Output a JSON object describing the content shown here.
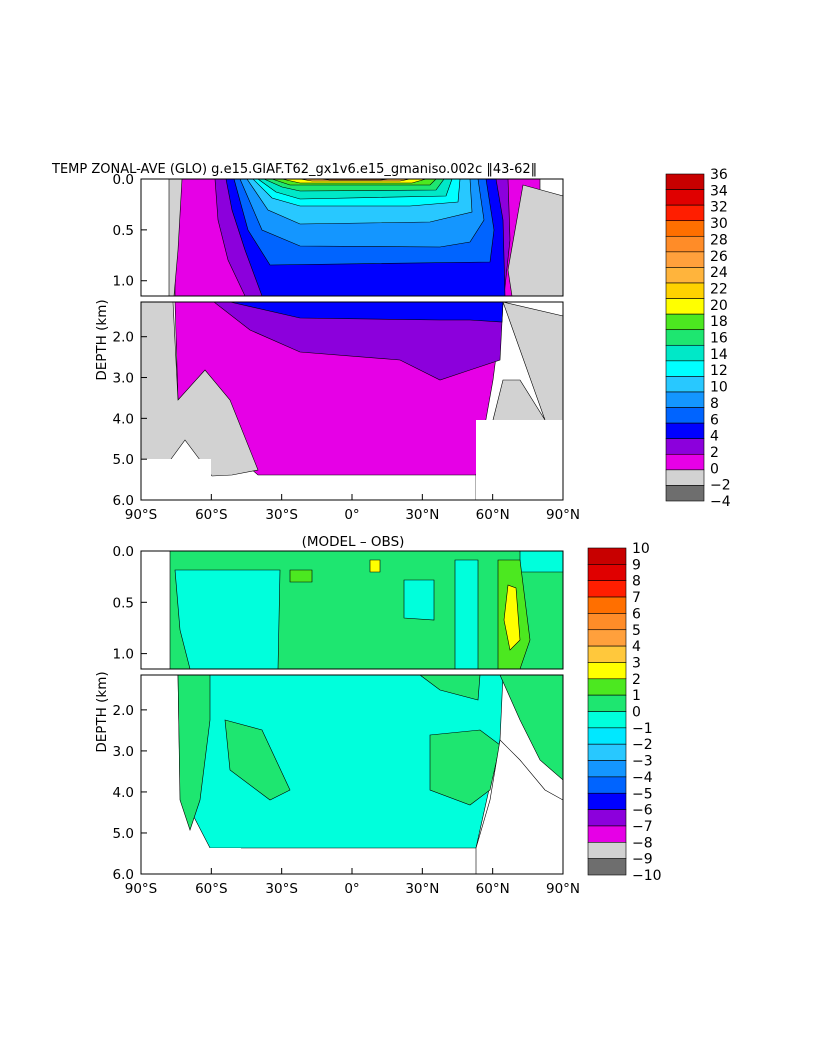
{
  "chart_data": [
    {
      "type": "heatmap",
      "title": "TEMP ZONAL-AVE (GLO) g.e15.GIAF.T62_gx1v6.e15_gmaniso.002c ‖43-62‖",
      "ylabel": "DEPTH (km)",
      "x_tick_labels": [
        "90°S",
        "60°S",
        "30°S",
        "0°",
        "30°N",
        "60°N",
        "90°N"
      ],
      "x_ticks": [
        -90,
        -60,
        -30,
        0,
        30,
        60,
        90
      ],
      "upper_y_ticks": [
        0.0,
        0.5,
        1.0
      ],
      "upper_y_tick_labels": [
        "0.0",
        "0.5",
        "1.0"
      ],
      "lower_y_ticks": [
        2.0,
        3.0,
        4.0,
        5.0,
        6.0
      ],
      "lower_y_tick_labels": [
        "2.0",
        "3.0",
        "4.0",
        "5.0",
        "6.0"
      ],
      "upper_ylim": [
        0.0,
        1.15
      ],
      "lower_ylim": [
        1.15,
        6.0
      ],
      "colorbar_levels": [
        "36",
        "34",
        "32",
        "30",
        "28",
        "26",
        "24",
        "22",
        "20",
        "18",
        "16",
        "14",
        "12",
        "10",
        "8",
        "6",
        "4",
        "2",
        "0",
        "−2",
        "−4"
      ],
      "colorbar_colors": [
        "#c80000",
        "#e00000",
        "#ff1e00",
        "#ff6f00",
        "#ff8c28",
        "#ffa03c",
        "#ffb43c",
        "#ffd200",
        "#ffff00",
        "#4ce820",
        "#1ee670",
        "#00e8c8",
        "#00ffff",
        "#28c8ff",
        "#1496ff",
        "#0064ff",
        "#0000ff",
        "#8c00dc",
        "#e600e6",
        "#d2d2d2",
        "#6e6e6e"
      ]
    },
    {
      "type": "heatmap",
      "title": "(MODEL – OBS)",
      "ylabel": "DEPTH (km)",
      "x_tick_labels": [
        "90°S",
        "60°S",
        "30°S",
        "0°",
        "30°N",
        "60°N",
        "90°N"
      ],
      "x_ticks": [
        -90,
        -60,
        -30,
        0,
        30,
        60,
        90
      ],
      "upper_y_ticks": [
        0.0,
        0.5,
        1.0
      ],
      "upper_y_tick_labels": [
        "0.0",
        "0.5",
        "1.0"
      ],
      "lower_y_ticks": [
        2.0,
        3.0,
        4.0,
        5.0,
        6.0
      ],
      "lower_y_tick_labels": [
        "2.0",
        "3.0",
        "4.0",
        "5.0",
        "6.0"
      ],
      "upper_ylim": [
        0.0,
        1.15
      ],
      "lower_ylim": [
        1.15,
        6.0
      ],
      "colorbar_levels": [
        "10",
        "9",
        "8",
        "7",
        "6",
        "5",
        "4",
        "3",
        "2",
        "1",
        "0",
        "−1",
        "−2",
        "−3",
        "−4",
        "−5",
        "−6",
        "−7",
        "−8",
        "−9",
        "−10"
      ],
      "colorbar_colors": [
        "#c80000",
        "#e00000",
        "#ff1e00",
        "#ff6f00",
        "#ff8c28",
        "#ffa03c",
        "#ffc83c",
        "#ffff00",
        "#4ce820",
        "#1ee670",
        "#00ffdc",
        "#00e8ff",
        "#28c8ff",
        "#1496ff",
        "#0064ff",
        "#0000ff",
        "#8c00dc",
        "#e600e6",
        "#d2d2d2",
        "#6e6e6e"
      ]
    }
  ]
}
